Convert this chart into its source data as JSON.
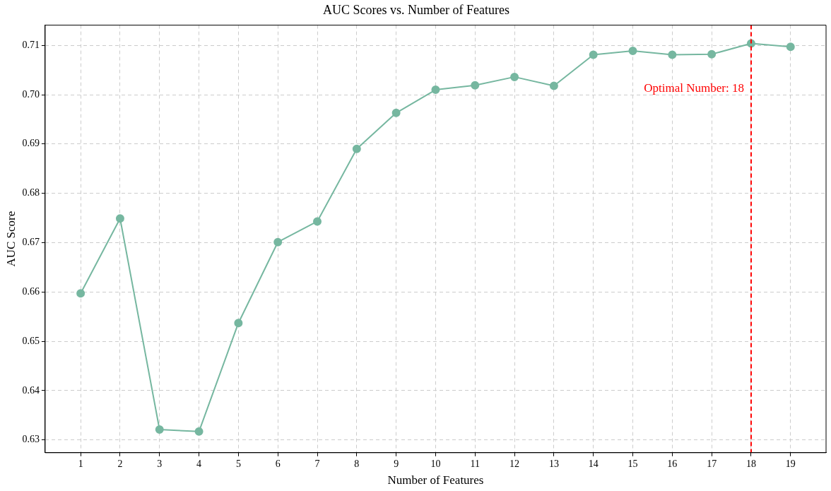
{
  "chart_data": {
    "type": "line",
    "title": "AUC Scores vs. Number of Features",
    "xlabel": "Number of Features",
    "ylabel": "AUC Score",
    "x": [
      1,
      2,
      3,
      4,
      5,
      6,
      7,
      8,
      9,
      10,
      11,
      12,
      13,
      14,
      15,
      16,
      17,
      18,
      19
    ],
    "series": [
      {
        "color": "#76b7a0",
        "values": [
          0.6597,
          0.6749,
          0.6321,
          0.6317,
          0.6537,
          0.6701,
          0.6743,
          0.689,
          0.6963,
          0.701,
          0.7019,
          0.7036,
          0.7018,
          0.7081,
          0.7089,
          0.7081,
          0.7082,
          0.7104,
          0.7097
        ]
      }
    ],
    "xlim": [
      0.1,
      19.9
    ],
    "xticks": [
      1,
      2,
      3,
      4,
      5,
      6,
      7,
      8,
      9,
      10,
      11,
      12,
      13,
      14,
      15,
      16,
      17,
      18,
      19
    ],
    "ylim": [
      0.6274,
      0.7141
    ],
    "yticks": [
      {
        "value": 0.63,
        "label": "0.63"
      },
      {
        "value": 0.64,
        "label": "0.64"
      },
      {
        "value": 0.65,
        "label": "0.65"
      },
      {
        "value": 0.66,
        "label": "0.66"
      },
      {
        "value": 0.67,
        "label": "0.67"
      },
      {
        "value": 0.68,
        "label": "0.68"
      },
      {
        "value": 0.69,
        "label": "0.69"
      },
      {
        "value": 0.7,
        "label": "0.70"
      },
      {
        "value": 0.71,
        "label": "0.71"
      }
    ],
    "ref_lines": [
      {
        "axis": "x",
        "value": 18,
        "label": "Optimal Number: 18",
        "color": "#ff0000",
        "line_style": "dashed"
      }
    ],
    "grid": true,
    "legend": false,
    "marker": "circle",
    "line_style": "solid"
  }
}
